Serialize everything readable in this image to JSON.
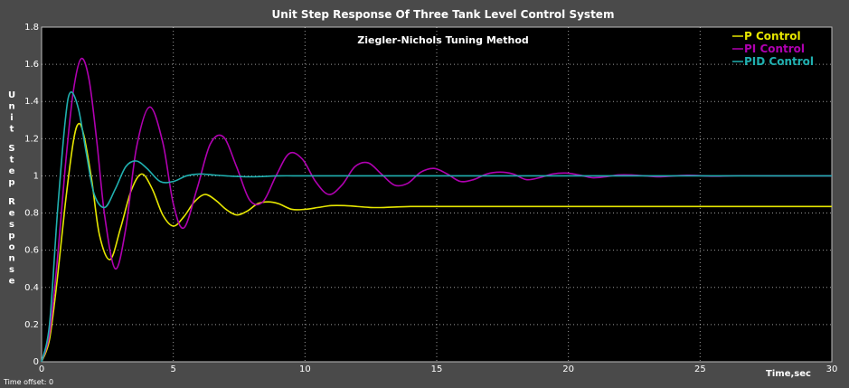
{
  "chart_data": {
    "type": "line",
    "title": "Unit Step Response Of Three Tank Level Control System",
    "subtitle": "Ziegler-Nichols Tuning Method",
    "xlabel": "Time,sec",
    "ylabel": "Unit Step Response",
    "xlim": [
      0,
      30
    ],
    "ylim": [
      0,
      1.8
    ],
    "x_ticks": [
      0,
      5,
      10,
      15,
      20,
      25,
      30
    ],
    "y_ticks": [
      0,
      0.2,
      0.4,
      0.6,
      0.8,
      1,
      1.2,
      1.4,
      1.6,
      1.8
    ],
    "grid": true,
    "legend_position": "top-right",
    "footer": "Time offset:  0",
    "colors": {
      "background": "#4a4a4a",
      "plot": "#000000",
      "grid": "#ffffff"
    },
    "series": [
      {
        "name": "P Control",
        "color": "#e6e600",
        "x": [
          0,
          0.3,
          0.6,
          0.9,
          1.2,
          1.4,
          1.6,
          1.9,
          2.2,
          2.6,
          3.0,
          3.4,
          3.8,
          4.2,
          4.6,
          5.0,
          5.4,
          5.8,
          6.2,
          6.6,
          7.0,
          7.4,
          7.8,
          8.2,
          8.6,
          9.0,
          9.5,
          10,
          10.5,
          11,
          11.5,
          12,
          12.5,
          13,
          14,
          15,
          16,
          18,
          20,
          25,
          30
        ],
        "y": [
          0,
          0.12,
          0.45,
          0.85,
          1.18,
          1.28,
          1.22,
          0.98,
          0.68,
          0.55,
          0.72,
          0.92,
          1.01,
          0.93,
          0.79,
          0.73,
          0.78,
          0.86,
          0.9,
          0.87,
          0.82,
          0.79,
          0.81,
          0.85,
          0.86,
          0.85,
          0.82,
          0.82,
          0.83,
          0.84,
          0.84,
          0.835,
          0.83,
          0.83,
          0.835,
          0.835,
          0.835,
          0.835,
          0.835,
          0.835,
          0.835
        ]
      },
      {
        "name": "PI Control",
        "color": "#b000b0",
        "x": [
          0,
          0.3,
          0.6,
          0.9,
          1.2,
          1.5,
          1.8,
          2.1,
          2.4,
          2.8,
          3.2,
          3.6,
          4.1,
          4.6,
          5.0,
          5.4,
          5.9,
          6.4,
          6.9,
          7.4,
          7.9,
          8.4,
          8.9,
          9.4,
          9.9,
          10.4,
          10.9,
          11.4,
          11.9,
          12.4,
          12.9,
          13.4,
          13.9,
          14.4,
          14.9,
          15.4,
          15.9,
          16.4,
          16.9,
          17.4,
          17.9,
          18.4,
          18.9,
          19.4,
          19.9,
          20.4,
          20.9,
          21.4,
          21.9,
          22.4,
          22.9,
          23.5,
          24.5,
          25.5,
          26.5,
          28,
          30
        ],
        "y": [
          0,
          0.15,
          0.55,
          1.05,
          1.45,
          1.63,
          1.52,
          1.18,
          0.78,
          0.5,
          0.72,
          1.15,
          1.37,
          1.18,
          0.85,
          0.72,
          0.93,
          1.17,
          1.21,
          1.05,
          0.87,
          0.86,
          1.0,
          1.12,
          1.09,
          0.97,
          0.9,
          0.95,
          1.05,
          1.07,
          1.01,
          0.95,
          0.96,
          1.02,
          1.04,
          1.01,
          0.97,
          0.98,
          1.01,
          1.02,
          1.01,
          0.98,
          0.99,
          1.01,
          1.015,
          1.005,
          0.99,
          0.995,
          1.005,
          1.005,
          1.0,
          0.995,
          1.003,
          0.998,
          1.001,
          1.0,
          1.0
        ]
      },
      {
        "name": "PID Control",
        "color": "#20b0b0",
        "x": [
          0,
          0.3,
          0.6,
          0.9,
          1.1,
          1.4,
          1.7,
          2.0,
          2.4,
          2.8,
          3.2,
          3.6,
          4.0,
          4.5,
          5.0,
          5.5,
          6.0,
          6.5,
          7.0,
          8.0,
          9.0,
          10,
          12,
          15,
          20,
          25,
          30
        ],
        "y": [
          0,
          0.2,
          0.8,
          1.3,
          1.45,
          1.36,
          1.12,
          0.9,
          0.83,
          0.93,
          1.05,
          1.08,
          1.04,
          0.97,
          0.97,
          1.0,
          1.01,
          1.005,
          1.0,
          0.995,
          1.0,
          1.0,
          1.0,
          1.0,
          1.0,
          1.0,
          1.0
        ]
      }
    ]
  }
}
